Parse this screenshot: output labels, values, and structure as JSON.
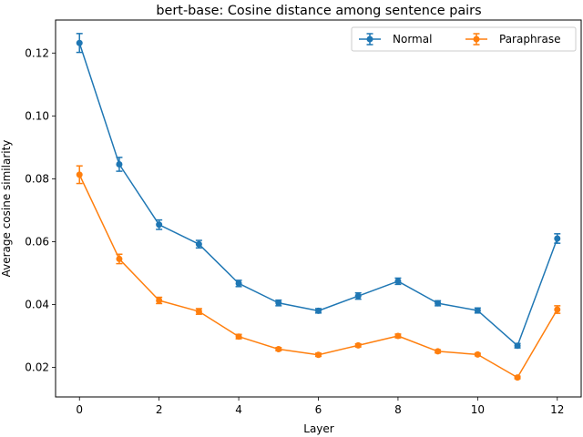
{
  "chart_data": {
    "type": "line",
    "title": "bert-base: Cosine distance among sentence pairs",
    "xlabel": "Layer",
    "ylabel": "Average cosine similarity",
    "xlim": [
      -0.6,
      12.6
    ],
    "ylim": [
      0.0106,
      0.1305
    ],
    "x_ticks": [
      0,
      2,
      4,
      6,
      8,
      10,
      12
    ],
    "y_ticks": [
      0.02,
      0.04,
      0.06,
      0.08,
      0.1,
      0.12
    ],
    "y_tick_labels": [
      "0.02",
      "0.04",
      "0.06",
      "0.08",
      "0.10",
      "0.12"
    ],
    "grid": false,
    "legend_position": "top-right",
    "x": [
      0,
      1,
      2,
      3,
      4,
      5,
      6,
      7,
      8,
      9,
      10,
      11,
      12
    ],
    "series": [
      {
        "name": "Normal",
        "color": "#1f77b4",
        "values": [
          0.1232,
          0.0846,
          0.0654,
          0.0592,
          0.0467,
          0.0405,
          0.038,
          0.0427,
          0.0474,
          0.0404,
          0.0381,
          0.0269,
          0.061
        ],
        "errors": [
          0.003,
          0.0022,
          0.0015,
          0.0012,
          0.001,
          0.0009,
          0.0007,
          0.001,
          0.001,
          0.0008,
          0.0008,
          0.0007,
          0.0015
        ]
      },
      {
        "name": "Paraphrase",
        "color": "#ff7f0e",
        "values": [
          0.0813,
          0.0545,
          0.0413,
          0.0378,
          0.0298,
          0.0258,
          0.024,
          0.027,
          0.03,
          0.0251,
          0.0241,
          0.0168,
          0.0384
        ],
        "errors": [
          0.0028,
          0.0015,
          0.001,
          0.0009,
          0.0007,
          0.0005,
          0.0005,
          0.0005,
          0.0006,
          0.0005,
          0.0004,
          0.0004,
          0.0012
        ]
      }
    ]
  }
}
